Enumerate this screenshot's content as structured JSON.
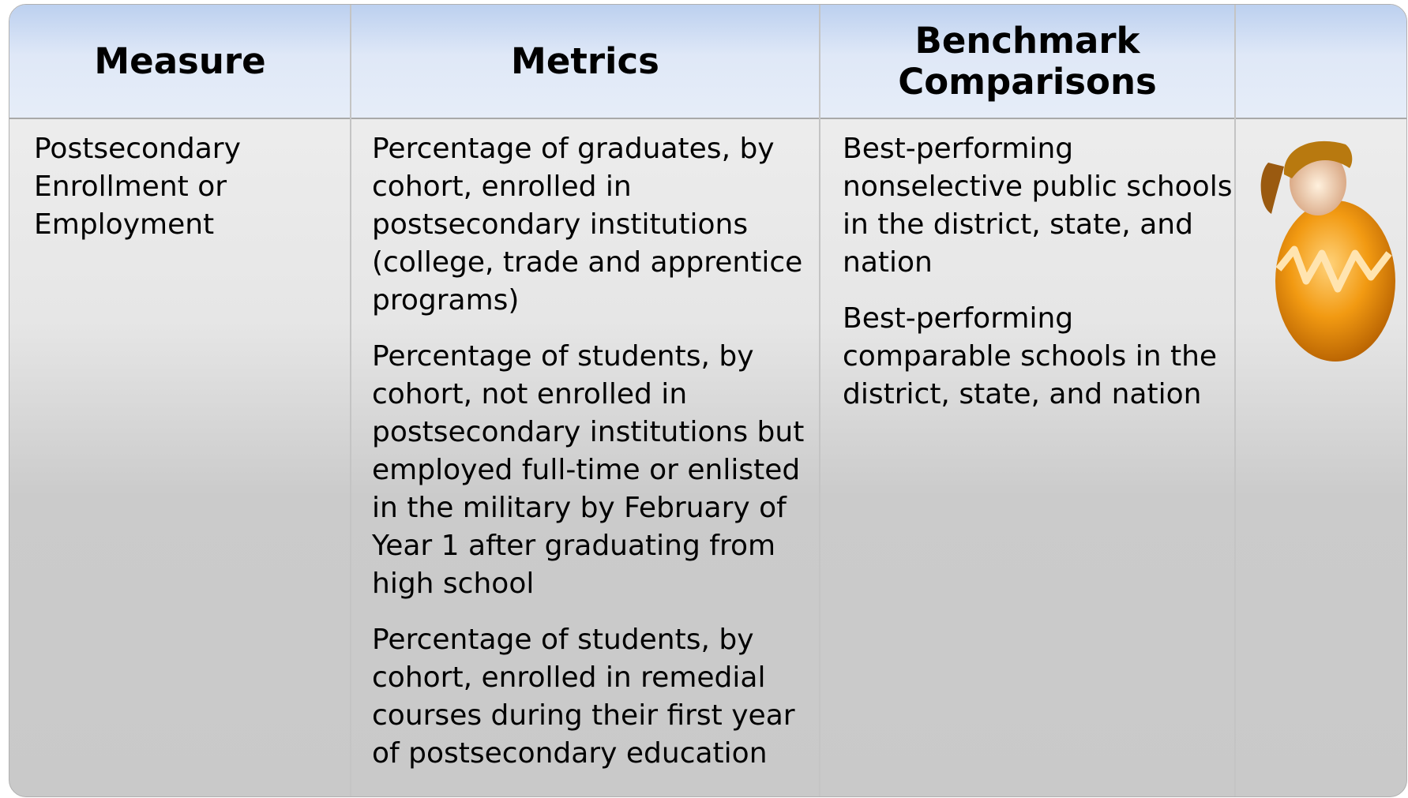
{
  "table": {
    "header": [
      "Measure",
      "Metrics",
      "Benchmark Comparisons"
    ],
    "row": {
      "measure": "Postsecondary Enrollment or Employment",
      "metrics": [
        "Percentage of graduates, by cohort, enrolled in postsecondary institutions (college, trade and apprentice programs)",
        "Percentage of students, by cohort, not enrolled in postsecondary institutions but employed full-time or enlisted in the military by February of Year 1 after graduating from high school",
        "Percentage of students, by cohort, enrolled in remedial courses during their first year of postsecondary education"
      ],
      "benchmarks": [
        "Best-performing nonselective public schools in the district, state, and nation",
        "Best-performing comparable schools in the district, state, and nation"
      ]
    }
  }
}
